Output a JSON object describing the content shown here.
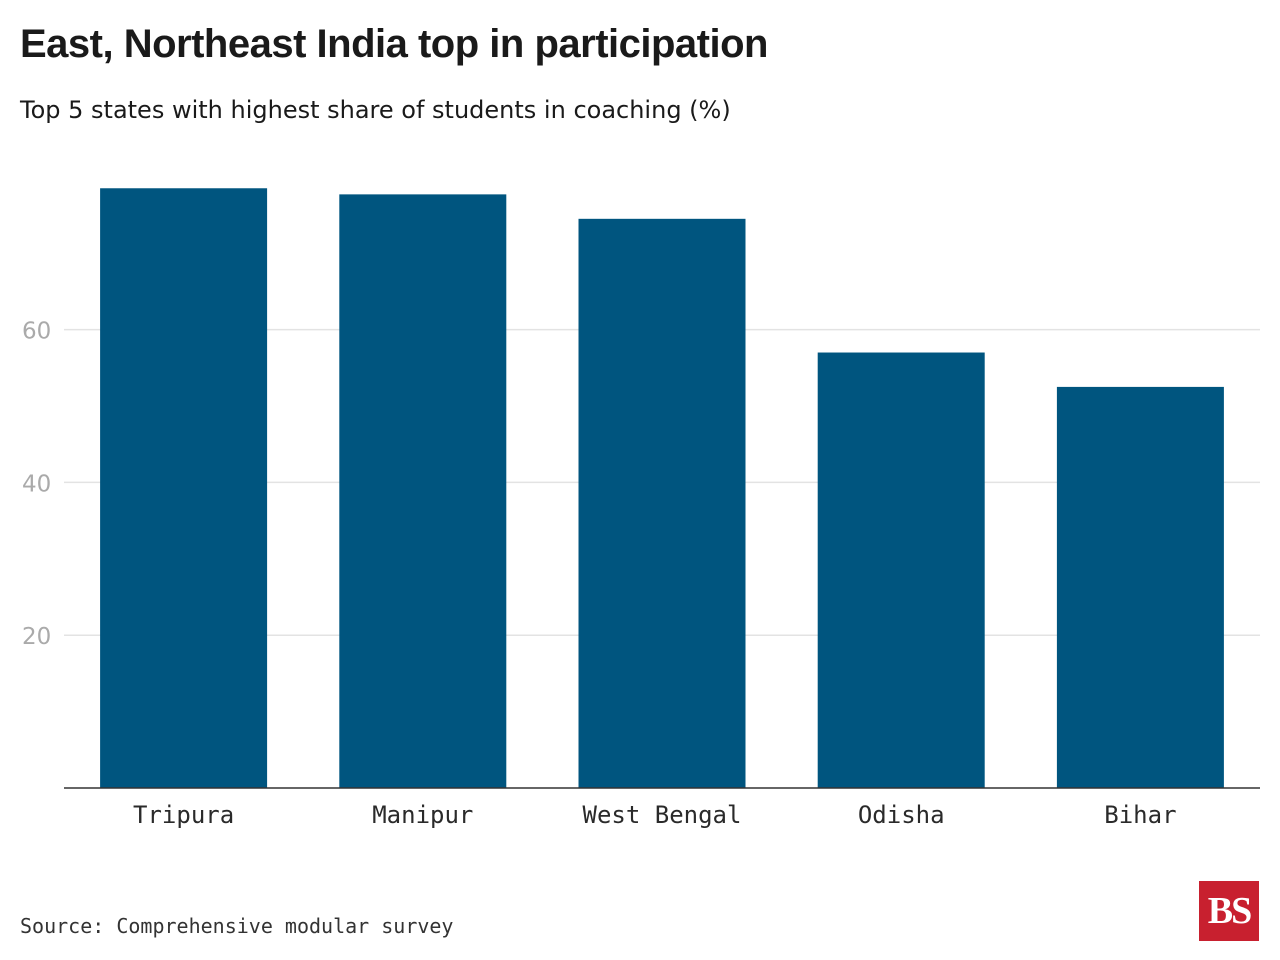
{
  "chart_data": {
    "type": "bar",
    "title": "East, Northeast India top in participation",
    "subtitle": "Top 5 states with highest share of students in coaching (%)",
    "categories": [
      "Tripura",
      "Manipur",
      "West Bengal",
      "Odisha",
      "Bihar"
    ],
    "values": [
      78.5,
      77.7,
      74.5,
      57.0,
      52.5
    ],
    "yticks": [
      20,
      40,
      60
    ],
    "ylim": [
      0,
      88
    ],
    "xlabel": "",
    "ylabel": "",
    "grid": true,
    "bar_color": "#00557f",
    "grid_color": "#e3e3e3",
    "tick_label_color": "#aaaaaa"
  },
  "footer": {
    "source": "Source: Comprehensive modular survey",
    "logo_text": "BS",
    "logo_color": "#c8202f"
  }
}
